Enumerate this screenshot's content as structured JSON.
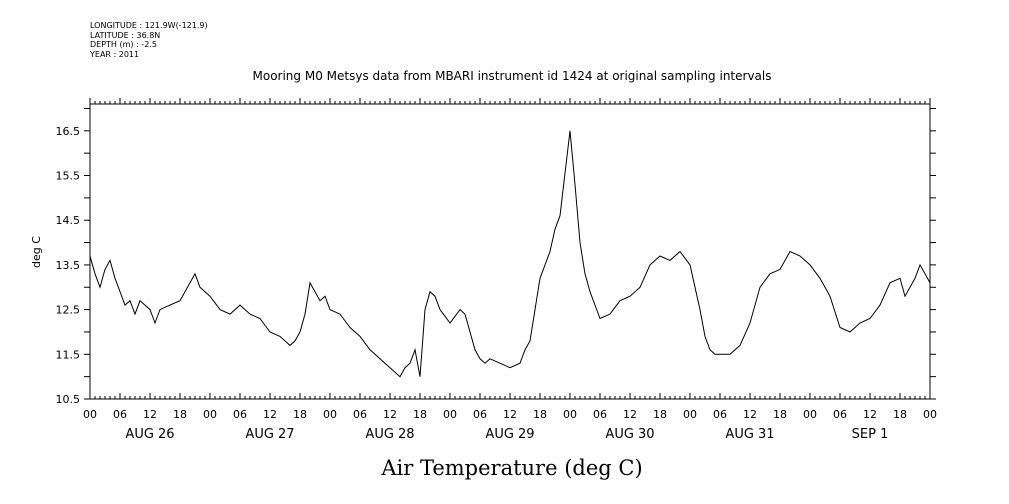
{
  "header": {
    "lines": [
      "LONGITUDE : 121.9W(-121.9)",
      "LATITUDE : 36.8N",
      "DEPTH (m) : -2.5",
      "YEAR : 2011"
    ]
  },
  "chart_data": {
    "type": "line",
    "title": "Mooring M0 Metsys data from MBARI instrument id 1424 at original sampling intervals",
    "xlabel": "Air Temperature (deg C)",
    "ylabel": "deg C",
    "ylim": [
      10.5,
      17.1
    ],
    "yticks": [
      10.5,
      11.5,
      12.5,
      13.5,
      14.5,
      15.5,
      16.5
    ],
    "ytick_labels": [
      "10.5",
      "11.5",
      "12.5",
      "13.5",
      "14.5",
      "15.5",
      "16.5"
    ],
    "xlim": [
      "2011-08-26 00:00",
      "2011-09-02 00:00"
    ],
    "xtick_hours": [
      "00",
      "06",
      "12",
      "18",
      "00",
      "06",
      "12",
      "18",
      "00",
      "06",
      "12",
      "18",
      "00",
      "06",
      "12",
      "18",
      "00",
      "06",
      "12",
      "18",
      "00",
      "06",
      "12",
      "18",
      "00",
      "06",
      "12",
      "18",
      "00"
    ],
    "day_labels": [
      "AUG 26",
      "AUG 27",
      "AUG 28",
      "AUG 29",
      "AUG 30",
      "AUG 31",
      "SEP  1"
    ],
    "grid": false,
    "series": [
      {
        "x": [
          "2011-08-26 00:00",
          "2011-08-26 01:00",
          "2011-08-26 02:00",
          "2011-08-26 03:00",
          "2011-08-26 04:00",
          "2011-08-26 05:00",
          "2011-08-26 06:00",
          "2011-08-26 07:00",
          "2011-08-26 08:00",
          "2011-08-26 09:00",
          "2011-08-26 10:00",
          "2011-08-26 11:00",
          "2011-08-26 12:00",
          "2011-08-26 13:00",
          "2011-08-26 14:00",
          "2011-08-26 16:00",
          "2011-08-26 18:00",
          "2011-08-26 20:00",
          "2011-08-26 21:00",
          "2011-08-26 22:00",
          "2011-08-27 00:00",
          "2011-08-27 02:00",
          "2011-08-27 04:00",
          "2011-08-27 06:00",
          "2011-08-27 08:00",
          "2011-08-27 10:00",
          "2011-08-27 12:00",
          "2011-08-27 14:00",
          "2011-08-27 16:00",
          "2011-08-27 17:00",
          "2011-08-27 18:00",
          "2011-08-27 19:00",
          "2011-08-27 20:00",
          "2011-08-27 21:00",
          "2011-08-27 22:00",
          "2011-08-27 23:00",
          "2011-08-28 00:00",
          "2011-08-28 02:00",
          "2011-08-28 04:00",
          "2011-08-28 06:00",
          "2011-08-28 08:00",
          "2011-08-28 10:00",
          "2011-08-28 12:00",
          "2011-08-28 14:00",
          "2011-08-28 15:00",
          "2011-08-28 16:00",
          "2011-08-28 17:00",
          "2011-08-28 18:00",
          "2011-08-28 19:00",
          "2011-08-28 20:00",
          "2011-08-28 21:00",
          "2011-08-28 22:00",
          "2011-08-29 00:00",
          "2011-08-29 02:00",
          "2011-08-29 03:00",
          "2011-08-29 05:00",
          "2011-08-29 06:00",
          "2011-08-29 07:00",
          "2011-08-29 08:00",
          "2011-08-29 10:00",
          "2011-08-29 12:00",
          "2011-08-29 14:00",
          "2011-08-29 15:00",
          "2011-08-29 16:00",
          "2011-08-29 18:00",
          "2011-08-29 19:00",
          "2011-08-29 20:00",
          "2011-08-29 21:00",
          "2011-08-29 22:00",
          "2011-08-30 00:00",
          "2011-08-30 01:00",
          "2011-08-30 02:00",
          "2011-08-30 03:00",
          "2011-08-30 04:00",
          "2011-08-30 06:00",
          "2011-08-30 08:00",
          "2011-08-30 10:00",
          "2011-08-30 12:00",
          "2011-08-30 14:00",
          "2011-08-30 16:00",
          "2011-08-30 18:00",
          "2011-08-30 20:00",
          "2011-08-30 22:00",
          "2011-08-31 00:00",
          "2011-08-31 02:00",
          "2011-08-31 03:00",
          "2011-08-31 04:00",
          "2011-08-31 05:00",
          "2011-08-31 06:00",
          "2011-08-31 08:00",
          "2011-08-31 10:00",
          "2011-08-31 12:00",
          "2011-08-31 14:00",
          "2011-08-31 16:00",
          "2011-08-31 18:00",
          "2011-08-31 20:00",
          "2011-08-31 22:00",
          "2011-09-01 00:00",
          "2011-09-01 02:00",
          "2011-09-01 04:00",
          "2011-09-01 06:00",
          "2011-09-01 08:00",
          "2011-09-01 10:00",
          "2011-09-01 12:00",
          "2011-09-01 14:00",
          "2011-09-01 16:00",
          "2011-09-01 18:00",
          "2011-09-01 19:00",
          "2011-09-01 20:00",
          "2011-09-01 21:00",
          "2011-09-01 22:00",
          "2011-09-01 23:00",
          "2011-09-02 00:00"
        ],
        "y": [
          13.7,
          13.3,
          13.0,
          13.4,
          13.6,
          13.2,
          12.9,
          12.6,
          12.7,
          12.4,
          12.7,
          12.6,
          12.5,
          12.2,
          12.5,
          12.6,
          12.7,
          13.1,
          13.3,
          13.0,
          12.8,
          12.5,
          12.4,
          12.6,
          12.4,
          12.3,
          12.0,
          11.9,
          11.7,
          11.8,
          12.0,
          12.4,
          13.1,
          12.9,
          12.7,
          12.8,
          12.5,
          12.4,
          12.1,
          11.9,
          11.6,
          11.4,
          11.2,
          11.0,
          11.2,
          11.3,
          11.6,
          11.0,
          12.5,
          12.9,
          12.8,
          12.5,
          12.2,
          12.5,
          12.4,
          11.6,
          11.4,
          11.3,
          11.4,
          11.3,
          11.2,
          11.3,
          11.6,
          11.8,
          13.2,
          13.5,
          13.8,
          14.3,
          14.6,
          16.5,
          15.3,
          14.0,
          13.3,
          12.9,
          12.3,
          12.4,
          12.7,
          12.8,
          13.0,
          13.5,
          13.7,
          13.6,
          13.8,
          13.5,
          12.5,
          11.9,
          11.6,
          11.5,
          11.5,
          11.5,
          11.7,
          12.2,
          13.0,
          13.3,
          13.4,
          13.8,
          13.7,
          13.5,
          13.2,
          12.8,
          12.1,
          12.0,
          12.2,
          12.3,
          12.6,
          13.1,
          13.2,
          12.8,
          13.0,
          13.2,
          13.5,
          13.3,
          13.1
        ]
      }
    ]
  }
}
